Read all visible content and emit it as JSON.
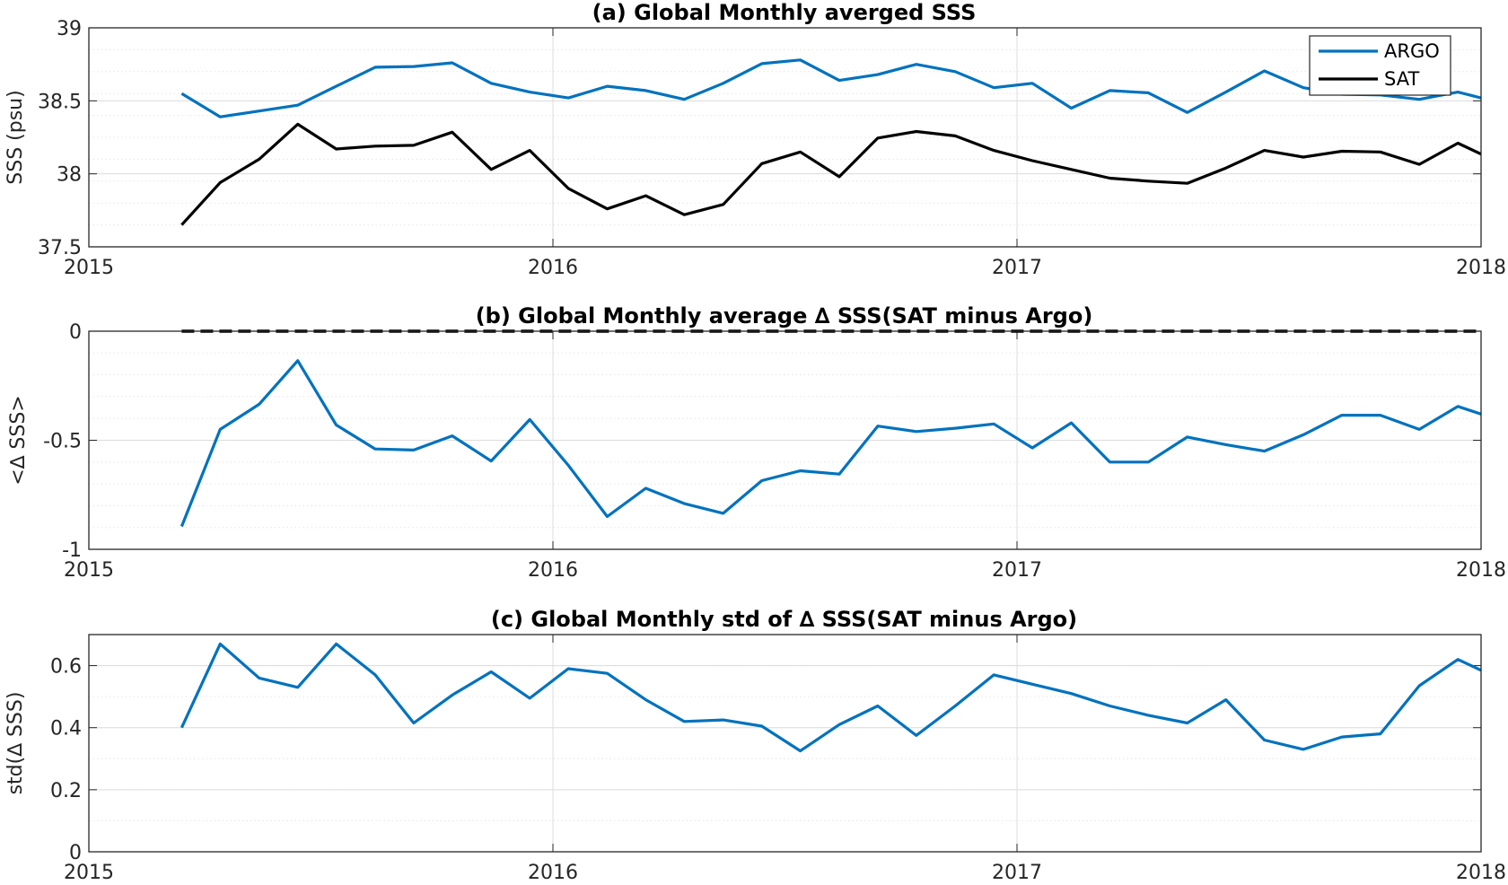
{
  "chart_data": [
    {
      "type": "line",
      "title": "(a) Global Monthly averged SSS",
      "xlabel": "",
      "ylabel": "SSS (psu)",
      "xlim": [
        2015,
        2018
      ],
      "ylim": [
        37.5,
        39
      ],
      "xticks": [
        "2015",
        "2016",
        "2017",
        "2018"
      ],
      "yticks": [
        "37.5",
        "38",
        "38.5",
        "39"
      ],
      "grid": true,
      "minor_grid": true,
      "legend": "top-right",
      "x": [
        2015.2,
        2015.283,
        2015.367,
        2015.45,
        2015.533,
        2015.617,
        2015.7,
        2015.783,
        2015.867,
        2015.95,
        2016.033,
        2016.117,
        2016.2,
        2016.283,
        2016.367,
        2016.45,
        2016.533,
        2016.617,
        2016.7,
        2016.783,
        2016.867,
        2016.95,
        2017.033,
        2017.117,
        2017.2,
        2017.283,
        2017.367,
        2017.45,
        2017.533,
        2017.617,
        2017.7,
        2017.783,
        2017.867,
        2017.95,
        2018.0
      ],
      "series": [
        {
          "name": "ARGO",
          "color": "#0072BD",
          "values": [
            38.55,
            38.39,
            38.43,
            38.47,
            38.6,
            38.73,
            38.735,
            38.76,
            38.62,
            38.56,
            38.52,
            38.6,
            38.57,
            38.51,
            38.62,
            38.755,
            38.78,
            38.64,
            38.68,
            38.75,
            38.7,
            38.59,
            38.62,
            38.45,
            38.57,
            38.555,
            38.42,
            38.56,
            38.705,
            38.59,
            38.545,
            38.54,
            38.51,
            38.56,
            38.52
          ]
        },
        {
          "name": "SAT",
          "color": "#000000",
          "values": [
            37.65,
            37.94,
            38.1,
            38.34,
            38.17,
            38.19,
            38.195,
            38.285,
            38.03,
            38.16,
            37.9,
            37.76,
            37.85,
            37.72,
            37.79,
            38.07,
            38.15,
            37.98,
            38.245,
            38.29,
            38.26,
            38.16,
            38.09,
            38.03,
            37.97,
            37.95,
            37.935,
            38.04,
            38.16,
            38.115,
            38.155,
            38.15,
            38.065,
            38.21,
            38.135
          ]
        }
      ]
    },
    {
      "type": "line",
      "title": "(b) Global Monthly average ∆ SSS(SAT minus Argo)",
      "xlabel": "",
      "ylabel": "<∆ SSS>",
      "xlim": [
        2015,
        2018
      ],
      "ylim": [
        -1,
        0
      ],
      "xticks": [
        "2015",
        "2016",
        "2017",
        "2018"
      ],
      "yticks": [
        "-1",
        "-0.5",
        "0"
      ],
      "grid": true,
      "minor_grid": true,
      "reference_line": {
        "y": 0,
        "style": "dashed",
        "color": "#000000"
      },
      "x": [
        2015.2,
        2015.283,
        2015.367,
        2015.45,
        2015.533,
        2015.617,
        2015.7,
        2015.783,
        2015.867,
        2015.95,
        2016.033,
        2016.117,
        2016.2,
        2016.283,
        2016.367,
        2016.45,
        2016.533,
        2016.617,
        2016.7,
        2016.783,
        2016.867,
        2016.95,
        2017.033,
        2017.117,
        2017.2,
        2017.283,
        2017.367,
        2017.45,
        2017.533,
        2017.617,
        2017.7,
        2017.783,
        2017.867,
        2017.95,
        2018.0
      ],
      "series": [
        {
          "color": "#0072BD",
          "values": [
            -0.895,
            -0.45,
            -0.335,
            -0.135,
            -0.43,
            -0.54,
            -0.545,
            -0.48,
            -0.595,
            -0.405,
            -0.615,
            -0.85,
            -0.72,
            -0.79,
            -0.835,
            -0.685,
            -0.64,
            -0.655,
            -0.435,
            -0.46,
            -0.445,
            -0.425,
            -0.535,
            -0.42,
            -0.6,
            -0.6,
            -0.485,
            -0.52,
            -0.55,
            -0.475,
            -0.385,
            -0.385,
            -0.45,
            -0.345,
            -0.38
          ]
        }
      ]
    },
    {
      "type": "line",
      "title": "(c) Global Monthly std of ∆ SSS(SAT minus Argo)",
      "xlabel": "",
      "ylabel": "std(∆ SSS)",
      "xlim": [
        2015,
        2018
      ],
      "ylim": [
        0,
        0.7
      ],
      "xticks": [
        "2015",
        "2016",
        "2017",
        "2018"
      ],
      "yticks": [
        "0",
        "0.2",
        "0.4",
        "0.6"
      ],
      "grid": true,
      "minor_grid": true,
      "x": [
        2015.2,
        2015.283,
        2015.367,
        2015.45,
        2015.533,
        2015.617,
        2015.7,
        2015.783,
        2015.867,
        2015.95,
        2016.033,
        2016.117,
        2016.2,
        2016.283,
        2016.367,
        2016.45,
        2016.533,
        2016.617,
        2016.7,
        2016.783,
        2016.867,
        2016.95,
        2017.033,
        2017.117,
        2017.2,
        2017.283,
        2017.367,
        2017.45,
        2017.533,
        2017.617,
        2017.7,
        2017.783,
        2017.867,
        2017.95,
        2018.0
      ],
      "series": [
        {
          "color": "#0072BD",
          "values": [
            0.4,
            0.67,
            0.56,
            0.53,
            0.67,
            0.57,
            0.415,
            0.505,
            0.58,
            0.495,
            0.59,
            0.575,
            0.49,
            0.42,
            0.425,
            0.405,
            0.325,
            0.41,
            0.47,
            0.375,
            0.47,
            0.57,
            0.54,
            0.51,
            0.47,
            0.44,
            0.415,
            0.49,
            0.36,
            0.33,
            0.37,
            0.38,
            0.535,
            0.62,
            0.585
          ]
        }
      ]
    }
  ]
}
